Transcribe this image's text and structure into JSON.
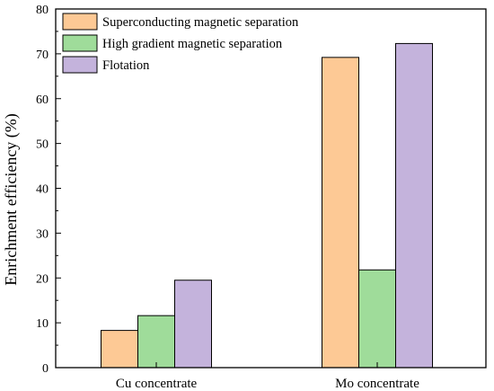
{
  "chart_data": {
    "type": "bar",
    "categories": [
      "Cu concentrate",
      "Mo concentrate"
    ],
    "series": [
      {
        "name": "Superconducting magnetic separation",
        "values": [
          8.3,
          69.2
        ],
        "color": "#fdc995"
      },
      {
        "name": "High gradient magnetic separation",
        "values": [
          11.6,
          21.8
        ],
        "color": "#9fdc9a"
      },
      {
        "name": "Flotation",
        "values": [
          19.5,
          72.3
        ],
        "color": "#c4b3dc"
      }
    ],
    "title": "",
    "xlabel": "",
    "ylabel": "Enrichment efficiency (%)",
    "ylim": [
      0,
      80
    ],
    "yticks": [
      0,
      10,
      20,
      30,
      40,
      50,
      60,
      70,
      80
    ],
    "grid": false,
    "legend_position": "top-left"
  }
}
